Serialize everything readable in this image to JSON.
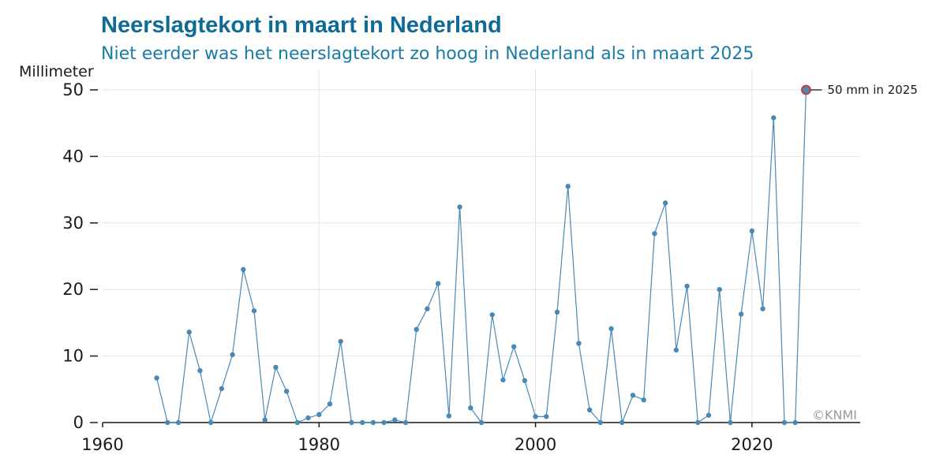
{
  "header": {
    "title": "Neerslagtekort in maart in Nederland",
    "subtitle": "Niet eerder was het neerslagtekort zo hoog in Nederland als in maart 2025"
  },
  "colors": {
    "title": "#0e6b97",
    "line": "#4a88b5",
    "highlight_ring": "#d9302a",
    "grid": "#e3e3e3",
    "axis": "#1a1a1a",
    "credit": "#9a9a9a"
  },
  "credit": "©KNMI",
  "chart_data": {
    "type": "line",
    "title": "Neerslagtekort in maart in Nederland",
    "subtitle": "Niet eerder was het neerslagtekort zo hoog in Nederland als in maart 2025",
    "ylabel": "Millimeter",
    "xlabel": "",
    "xlim": [
      1960,
      2030
    ],
    "ylim": [
      0,
      53
    ],
    "xticks": [
      1960,
      1980,
      2000,
      2020
    ],
    "yticks": [
      0,
      10,
      20,
      30,
      40,
      50
    ],
    "grid": true,
    "series": [
      {
        "x": [
          1965,
          1966,
          1967,
          1968,
          1969,
          1970,
          1971,
          1972,
          1973,
          1974,
          1975,
          1976,
          1977,
          1978,
          1979,
          1980,
          1981,
          1982,
          1983,
          1984,
          1985,
          1986,
          1987,
          1988,
          1989,
          1990,
          1991,
          1992,
          1993,
          1994,
          1995,
          1996,
          1997,
          1998,
          1999,
          2000,
          2001,
          2002,
          2003,
          2004,
          2005,
          2006,
          2007,
          2008,
          2009,
          2010,
          2011,
          2012,
          2013,
          2014,
          2015,
          2016,
          2017,
          2018,
          2019,
          2020,
          2021,
          2022,
          2023,
          2024,
          2025
        ],
        "values": [
          6.7,
          0,
          0,
          13.6,
          7.8,
          0,
          5.1,
          10.2,
          23.0,
          16.8,
          0.4,
          8.3,
          4.7,
          0,
          0.7,
          1.2,
          2.8,
          12.2,
          0,
          0,
          0,
          0,
          0.4,
          0,
          14.0,
          17.1,
          20.9,
          1.0,
          32.4,
          2.2,
          0,
          16.2,
          6.4,
          11.4,
          6.3,
          0.9,
          0.9,
          16.6,
          35.5,
          11.9,
          1.9,
          0,
          14.1,
          0,
          4.1,
          3.4,
          28.4,
          33.0,
          10.9,
          20.5,
          0,
          1.1,
          20.0,
          0,
          16.3,
          28.8,
          17.1,
          45.8,
          0,
          0,
          50.0
        ]
      }
    ],
    "annotations": [
      {
        "x": 2025,
        "y": 50,
        "text": "50 mm in 2025"
      }
    ]
  }
}
